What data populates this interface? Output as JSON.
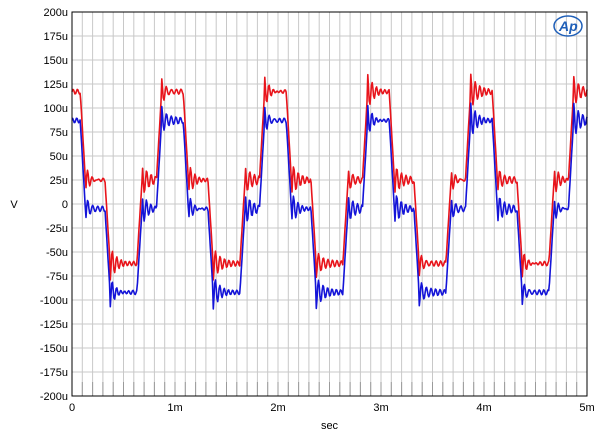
{
  "chart_data": {
    "type": "line",
    "title": "",
    "xlabel": "sec",
    "ylabel": "V",
    "xlim": [
      0,
      0.005
    ],
    "ylim": [
      -0.0002,
      0.0002
    ],
    "grid": true,
    "x_tick_labels": [
      "0",
      "1m",
      "2m",
      "3m",
      "4m",
      "5m"
    ],
    "y_tick_labels": [
      "200u",
      "175u",
      "150u",
      "125u",
      "100u",
      "75u",
      "50u",
      "25u",
      "0",
      "-25u",
      "-50u",
      "-75u",
      "-100u",
      "-125u",
      "-150u",
      "-175u",
      "-200u"
    ],
    "logo_text": "Ap",
    "series_colors": [
      "#e8141b",
      "#1414d8"
    ],
    "waveform_description": "Stepped 4-level periodic waveform, period approx 1 ms, with ringing at each transition.",
    "series": [
      {
        "color": "#e8141b",
        "levels_V": [
          0.000117,
          2.5e-05,
          -6.2e-05,
          2.5e-05
        ],
        "x": [
          0,
          8e-05,
          0.00013,
          0.00032,
          0.00037,
          0.00063,
          0.00068,
          0.00082,
          0.00087,
          0.00108,
          0.00113,
          0.00132,
          0.00137,
          0.00163,
          0.00168,
          0.00182,
          0.00187,
          0.00208,
          0.00213,
          0.00232,
          0.00237,
          0.00263,
          0.00268,
          0.00282,
          0.00287,
          0.00308,
          0.00313,
          0.00332,
          0.00337,
          0.00363,
          0.00368,
          0.00382,
          0.00387,
          0.00408,
          0.00413,
          0.00432,
          0.00437,
          0.00463,
          0.00468,
          0.00482,
          0.00487,
          0.005
        ],
        "y": [
          0.000117,
          0.000117,
          2.5e-05,
          2.5e-05,
          -6.2e-05,
          -6.2e-05,
          2.5e-05,
          2.5e-05,
          0.000117,
          0.000117,
          2.5e-05,
          2.5e-05,
          -6.2e-05,
          -6.2e-05,
          2.5e-05,
          2.5e-05,
          0.000117,
          0.000117,
          2.5e-05,
          2.5e-05,
          -6.2e-05,
          -6.2e-05,
          2.5e-05,
          2.5e-05,
          0.000117,
          0.000117,
          2.5e-05,
          2.5e-05,
          -6.2e-05,
          -6.2e-05,
          2.5e-05,
          2.5e-05,
          0.000117,
          0.000117,
          2.5e-05,
          2.5e-05,
          -6.2e-05,
          -6.2e-05,
          2.5e-05,
          2.5e-05,
          0.000117,
          0.000117
        ]
      },
      {
        "color": "#1414d8",
        "levels_V": [
          8.7e-05,
          -5e-06,
          -9.2e-05,
          -5e-06
        ],
        "x": [
          0,
          8e-05,
          0.00013,
          0.00032,
          0.00037,
          0.00063,
          0.00068,
          0.00082,
          0.00087,
          0.00108,
          0.00113,
          0.00132,
          0.00137,
          0.00163,
          0.00168,
          0.00182,
          0.00187,
          0.00208,
          0.00213,
          0.00232,
          0.00237,
          0.00263,
          0.00268,
          0.00282,
          0.00287,
          0.00308,
          0.00313,
          0.00332,
          0.00337,
          0.00363,
          0.00368,
          0.00382,
          0.00387,
          0.00408,
          0.00413,
          0.00432,
          0.00437,
          0.00463,
          0.00468,
          0.00482,
          0.00487,
          0.005
        ],
        "y": [
          8.7e-05,
          8.7e-05,
          -5e-06,
          -5e-06,
          -9.2e-05,
          -9.2e-05,
          -5e-06,
          -5e-06,
          8.7e-05,
          8.7e-05,
          -5e-06,
          -5e-06,
          -9.2e-05,
          -9.2e-05,
          -5e-06,
          -5e-06,
          8.7e-05,
          8.7e-05,
          -5e-06,
          -5e-06,
          -9.2e-05,
          -9.2e-05,
          -5e-06,
          -5e-06,
          8.7e-05,
          8.7e-05,
          -5e-06,
          -5e-06,
          -9.2e-05,
          -9.2e-05,
          -5e-06,
          -5e-06,
          8.7e-05,
          8.7e-05,
          -5e-06,
          -5e-06,
          -9.2e-05,
          -9.2e-05,
          -5e-06,
          -5e-06,
          8.7e-05,
          8.7e-05
        ]
      }
    ]
  }
}
